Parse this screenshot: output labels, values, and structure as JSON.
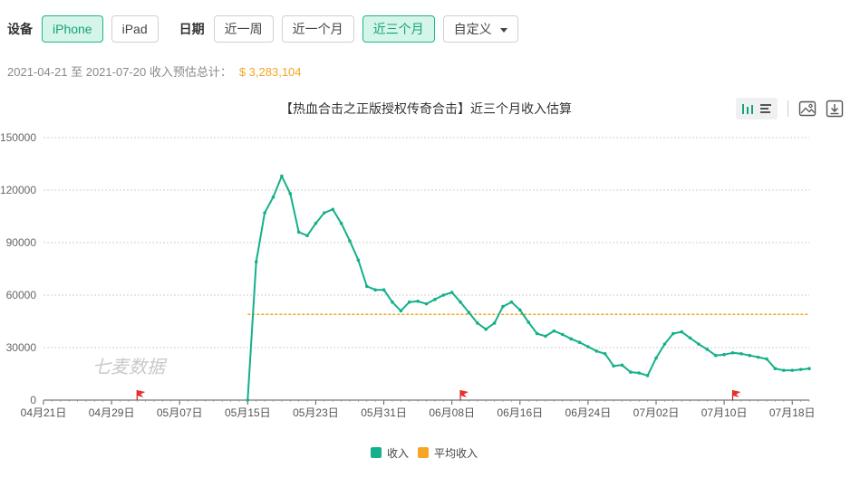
{
  "filters": {
    "device_label": "设备",
    "devices": [
      {
        "label": "iPhone",
        "active": true
      },
      {
        "label": "iPad",
        "active": false
      }
    ],
    "date_label": "日期",
    "ranges": [
      {
        "label": "近一周",
        "active": false
      },
      {
        "label": "近一个月",
        "active": false
      },
      {
        "label": "近三个月",
        "active": true
      }
    ],
    "custom_label": "自定义"
  },
  "summary": {
    "range_text": "2021-04-21 至 2021-07-20 收入预估总计：",
    "total": "$ 3,283,104"
  },
  "toolbar": {
    "icons": [
      "bar-chart-icon",
      "list-icon",
      "image-icon",
      "download-icon"
    ]
  },
  "colors": {
    "accent": "#1fb68a",
    "series": "#14b089",
    "average": "#f5a623",
    "flag": "#e8312b"
  },
  "chart_data": {
    "type": "line",
    "title": "【热血合击之正版授权传奇合击】近三个月收入估算",
    "watermark": "七麦数据",
    "x_ticks": [
      "04月21日",
      "04月29日",
      "05月07日",
      "05月15日",
      "05月23日",
      "05月31日",
      "06月08日",
      "06月16日",
      "06月24日",
      "07月02日",
      "07月10日",
      "07月18日"
    ],
    "y_ticks": [
      "0",
      "30000",
      "60000",
      "90000",
      "120000",
      "150000"
    ],
    "ylim": [
      0,
      150000
    ],
    "x_start": "2021-04-21",
    "x_end": "2021-07-20",
    "grid": true,
    "legend_position": "bottom",
    "series": [
      {
        "name": "收入",
        "x": [
          "2021-05-15",
          "2021-05-16",
          "2021-05-17",
          "2021-05-18",
          "2021-05-19",
          "2021-05-20",
          "2021-05-21",
          "2021-05-22",
          "2021-05-23",
          "2021-05-24",
          "2021-05-25",
          "2021-05-26",
          "2021-05-27",
          "2021-05-28",
          "2021-05-29",
          "2021-05-30",
          "2021-05-31",
          "2021-06-01",
          "2021-06-02",
          "2021-06-03",
          "2021-06-04",
          "2021-06-05",
          "2021-06-06",
          "2021-06-07",
          "2021-06-08",
          "2021-06-09",
          "2021-06-10",
          "2021-06-11",
          "2021-06-12",
          "2021-06-13",
          "2021-06-14",
          "2021-06-15",
          "2021-06-16",
          "2021-06-17",
          "2021-06-18",
          "2021-06-19",
          "2021-06-20",
          "2021-06-21",
          "2021-06-22",
          "2021-06-23",
          "2021-06-24",
          "2021-06-25",
          "2021-06-26",
          "2021-06-27",
          "2021-06-28",
          "2021-06-29",
          "2021-06-30",
          "2021-07-01",
          "2021-07-02",
          "2021-07-03",
          "2021-07-04",
          "2021-07-05",
          "2021-07-06",
          "2021-07-07",
          "2021-07-08",
          "2021-07-09",
          "2021-07-10",
          "2021-07-11",
          "2021-07-12",
          "2021-07-13",
          "2021-07-14",
          "2021-07-15",
          "2021-07-16",
          "2021-07-17",
          "2021-07-18",
          "2021-07-19",
          "2021-07-20"
        ],
        "values": [
          0,
          79000,
          107000,
          116000,
          128000,
          118000,
          96000,
          94000,
          101000,
          107000,
          109000,
          101000,
          91000,
          80000,
          65000,
          63000,
          63000,
          56000,
          51000,
          56000,
          56500,
          55000,
          57500,
          60000,
          61500,
          56000,
          50000,
          44000,
          40500,
          44000,
          53500,
          56000,
          51500,
          44500,
          38000,
          36500,
          39500,
          37500,
          35000,
          33000,
          30500,
          28000,
          26500,
          19500,
          20000,
          16000,
          15500,
          14000,
          24000,
          32000,
          38000,
          39000,
          35500,
          32000,
          29000,
          25500,
          26000,
          27000,
          26500,
          25500,
          24500,
          23500,
          18000,
          17000,
          17000,
          17500,
          18000
        ]
      },
      {
        "name": "平均收入",
        "x": [
          "2021-05-15",
          "2021-07-20"
        ],
        "values": [
          49000,
          49000
        ]
      }
    ],
    "flags_x": [
      "2021-05-02",
      "2021-06-09",
      "2021-07-11"
    ]
  }
}
